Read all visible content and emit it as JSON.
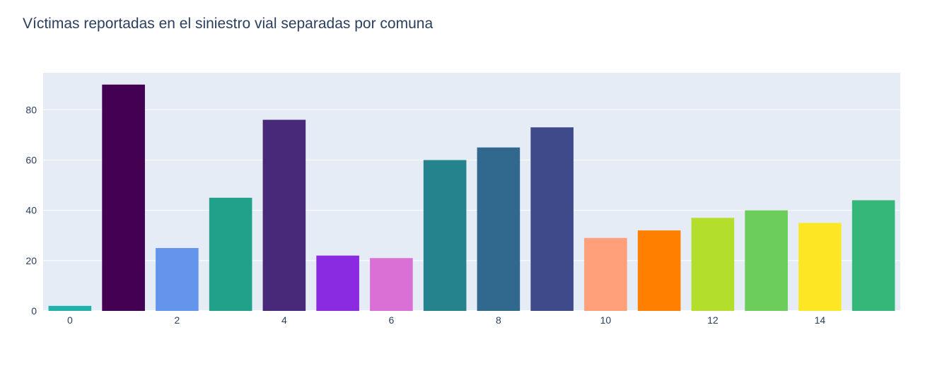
{
  "chart_data": {
    "type": "bar",
    "title": "Víctimas reportadas en el siniestro vial separadas por comuna",
    "xlabel": "",
    "ylabel": "",
    "x": [
      0,
      1,
      2,
      3,
      4,
      5,
      6,
      7,
      8,
      9,
      10,
      11,
      12,
      13,
      14,
      15
    ],
    "values": [
      2,
      90,
      25,
      45,
      76,
      22,
      21,
      60,
      65,
      73,
      29,
      32,
      37,
      40,
      35,
      44
    ],
    "colors": [
      "#20b2aa",
      "#440154",
      "#6495ed",
      "#21a08a",
      "#482878",
      "#8a2be2",
      "#da70d6",
      "#25838e",
      "#31688e",
      "#3e4a89",
      "#ffa07a",
      "#ff7f00",
      "#b4de2c",
      "#6ccd5a",
      "#fde725",
      "#35b779"
    ],
    "xlim": [
      -0.5,
      15.5
    ],
    "ylim": [
      0,
      94.7
    ],
    "xticks": [
      0,
      2,
      4,
      6,
      8,
      10,
      12,
      14
    ],
    "yticks": [
      0,
      20,
      40,
      60,
      80
    ],
    "grid": true,
    "plot_background": "#e5ecf6",
    "text_color": "#2a3f5f",
    "legend": "none"
  }
}
